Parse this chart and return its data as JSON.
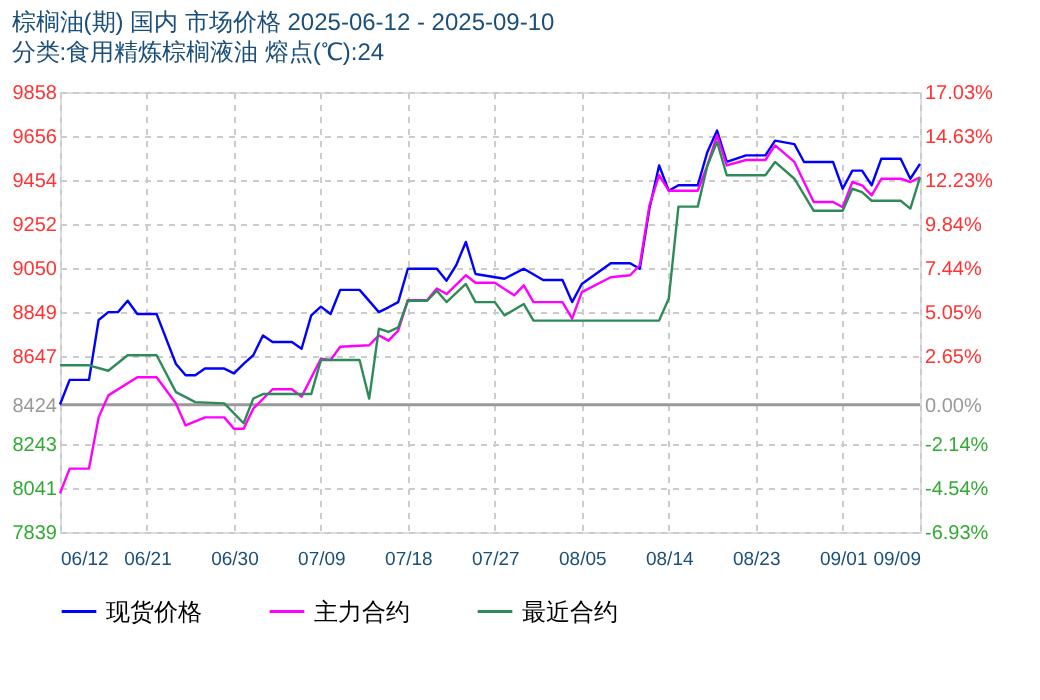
{
  "chart_data": {
    "type": "line",
    "title": "棕榈油(期) 国内 市场价格 2025-06-12 - 2025-09-10",
    "subtitle": "分类:食用精炼棕榈液油 熔点(℃):24",
    "xlim": [
      "2025-06-12",
      "2025-09-09"
    ],
    "xticks": [
      {
        "value": "2025-06-12",
        "label": "06/12"
      },
      {
        "value": "2025-06-21",
        "label": "06/21"
      },
      {
        "value": "2025-06-30",
        "label": "06/30"
      },
      {
        "value": "2025-07-09",
        "label": "07/09"
      },
      {
        "value": "2025-07-18",
        "label": "07/18"
      },
      {
        "value": "2025-07-27",
        "label": "07/27"
      },
      {
        "value": "2025-08-05",
        "label": "08/05"
      },
      {
        "value": "2025-08-14",
        "label": "08/14"
      },
      {
        "value": "2025-08-23",
        "label": "08/23"
      },
      {
        "value": "2025-09-01",
        "label": "09/01"
      },
      {
        "value": "2025-09-09",
        "label": "09/09"
      }
    ],
    "ylim": [
      7839,
      9858
    ],
    "yticks": [
      7839,
      8041,
      8243,
      8424,
      8647,
      8849,
      9050,
      9252,
      9454,
      9656,
      9858
    ],
    "y2lim": [
      -6.93,
      17.03
    ],
    "y2ticks": [
      {
        "value": -6.93,
        "label": "-6.93%"
      },
      {
        "value": -4.54,
        "label": "-4.54%"
      },
      {
        "value": -2.14,
        "label": "-2.14%"
      },
      {
        "value": 0,
        "label": "0.00%"
      },
      {
        "value": 2.65,
        "label": "2.65%"
      },
      {
        "value": 5.05,
        "label": "5.05%"
      },
      {
        "value": 7.44,
        "label": "7.44%"
      },
      {
        "value": 9.84,
        "label": "9.84%"
      },
      {
        "value": 12.23,
        "label": "12.23%"
      },
      {
        "value": 14.63,
        "label": "14.63%"
      },
      {
        "value": 17.03,
        "label": "17.03%"
      }
    ],
    "ref_lines": [
      {
        "axis": "y2",
        "value": 0,
        "color": "#999999",
        "line_style": "solid"
      }
    ],
    "grid": true,
    "legend": "bottom",
    "marker": "none",
    "line_style": "solid",
    "series": [
      {
        "name": "现货价格",
        "color": "#0000ff",
        "x": [
          "2025-06-12",
          "2025-06-13",
          "2025-06-15",
          "2025-06-16",
          "2025-06-17",
          "2025-06-18",
          "2025-06-19",
          "2025-06-20",
          "2025-06-22",
          "2025-06-24",
          "2025-06-25",
          "2025-06-26",
          "2025-06-27",
          "2025-06-29",
          "2025-06-30",
          "2025-07-01",
          "2025-07-02",
          "2025-07-03",
          "2025-07-04",
          "2025-07-06",
          "2025-07-07",
          "2025-07-08",
          "2025-07-09",
          "2025-07-10",
          "2025-07-11",
          "2025-07-13",
          "2025-07-15",
          "2025-07-16",
          "2025-07-17",
          "2025-07-18",
          "2025-07-21",
          "2025-07-22",
          "2025-07-23",
          "2025-07-24",
          "2025-07-25",
          "2025-07-28",
          "2025-07-30",
          "2025-08-01",
          "2025-08-03",
          "2025-08-04",
          "2025-08-05",
          "2025-08-08",
          "2025-08-10",
          "2025-08-11",
          "2025-08-12",
          "2025-08-13",
          "2025-08-14",
          "2025-08-15",
          "2025-08-17",
          "2025-08-18",
          "2025-08-19",
          "2025-08-20",
          "2025-08-22",
          "2025-08-24",
          "2025-08-25",
          "2025-08-27",
          "2025-08-28",
          "2025-08-31",
          "2025-09-01",
          "2025-09-02",
          "2025-09-03",
          "2025-09-04",
          "2025-09-05",
          "2025-09-07",
          "2025-09-08",
          "2025-09-09"
        ],
        "values": [
          8424,
          8537,
          8537,
          8812,
          8848,
          8848,
          8900,
          8839,
          8839,
          8610,
          8558,
          8558,
          8589,
          8589,
          8567,
          8610,
          8650,
          8741,
          8711,
          8711,
          8680,
          8833,
          8873,
          8839,
          8950,
          8950,
          8848,
          8870,
          8894,
          9047,
          9047,
          8992,
          9063,
          9170,
          9023,
          9001,
          9047,
          8995,
          8995,
          8894,
          8977,
          9072,
          9072,
          9047,
          9323,
          9521,
          9405,
          9430,
          9430,
          9583,
          9681,
          9537,
          9567,
          9567,
          9635,
          9619,
          9537,
          9537,
          9414,
          9497,
          9497,
          9430,
          9552,
          9552,
          9460,
          9528
        ]
      },
      {
        "name": "主力合约",
        "color": "#ff00ff",
        "x": [
          "2025-06-12",
          "2025-06-13",
          "2025-06-15",
          "2025-06-16",
          "2025-06-17",
          "2025-06-20",
          "2025-06-22",
          "2025-06-24",
          "2025-06-25",
          "2025-06-27",
          "2025-06-29",
          "2025-06-30",
          "2025-07-01",
          "2025-07-02",
          "2025-07-04",
          "2025-07-06",
          "2025-07-07",
          "2025-07-09",
          "2025-07-10",
          "2025-07-11",
          "2025-07-14",
          "2025-07-15",
          "2025-07-16",
          "2025-07-17",
          "2025-07-18",
          "2025-07-20",
          "2025-07-21",
          "2025-07-22",
          "2025-07-24",
          "2025-07-25",
          "2025-07-27",
          "2025-07-29",
          "2025-07-30",
          "2025-07-31",
          "2025-08-03",
          "2025-08-04",
          "2025-08-05",
          "2025-08-08",
          "2025-08-10",
          "2025-08-11",
          "2025-08-12",
          "2025-08-13",
          "2025-08-14",
          "2025-08-17",
          "2025-08-18",
          "2025-08-19",
          "2025-08-20",
          "2025-08-22",
          "2025-08-24",
          "2025-08-25",
          "2025-08-27",
          "2025-08-29",
          "2025-08-31",
          "2025-09-01",
          "2025-09-02",
          "2025-09-03",
          "2025-09-04",
          "2025-09-05",
          "2025-09-07",
          "2025-09-08",
          "2025-09-09"
        ],
        "values": [
          8016,
          8130,
          8130,
          8365,
          8466,
          8549,
          8549,
          8429,
          8328,
          8365,
          8365,
          8313,
          8313,
          8405,
          8494,
          8494,
          8460,
          8634,
          8628,
          8689,
          8696,
          8741,
          8717,
          8763,
          8903,
          8903,
          8956,
          8931,
          9017,
          8983,
          8983,
          8925,
          8971,
          8894,
          8894,
          8818,
          8940,
          9008,
          9017,
          9063,
          9338,
          9476,
          9405,
          9405,
          9521,
          9659,
          9521,
          9546,
          9546,
          9613,
          9537,
          9353,
          9353,
          9329,
          9445,
          9430,
          9384,
          9460,
          9460,
          9445,
          9466
        ]
      },
      {
        "name": "最近合约",
        "color": "#2e8b57",
        "x": [
          "2025-06-12",
          "2025-06-15",
          "2025-06-17",
          "2025-06-19",
          "2025-06-22",
          "2025-06-24",
          "2025-06-26",
          "2025-06-29",
          "2025-07-01",
          "2025-07-02",
          "2025-07-03",
          "2025-07-08",
          "2025-07-09",
          "2025-07-13",
          "2025-07-14",
          "2025-07-15",
          "2025-07-16",
          "2025-07-17",
          "2025-07-18",
          "2025-07-20",
          "2025-07-21",
          "2025-07-22",
          "2025-07-24",
          "2025-07-25",
          "2025-07-27",
          "2025-07-28",
          "2025-07-30",
          "2025-07-31",
          "2025-08-13",
          "2025-08-14",
          "2025-08-15",
          "2025-08-17",
          "2025-08-18",
          "2025-08-19",
          "2025-08-20",
          "2025-08-24",
          "2025-08-25",
          "2025-08-27",
          "2025-08-29",
          "2025-09-01",
          "2025-09-02",
          "2025-09-03",
          "2025-09-04",
          "2025-09-07",
          "2025-09-08",
          "2025-09-09"
        ],
        "values": [
          8604,
          8604,
          8579,
          8650,
          8650,
          8481,
          8435,
          8429,
          8338,
          8451,
          8472,
          8472,
          8628,
          8628,
          8451,
          8772,
          8757,
          8778,
          8900,
          8900,
          8946,
          8894,
          8977,
          8894,
          8894,
          8833,
          8885,
          8809,
          8809,
          8910,
          9332,
          9332,
          9521,
          9629,
          9476,
          9476,
          9537,
          9460,
          9313,
          9313,
          9414,
          9399,
          9359,
          9359,
          9323,
          9466
        ]
      }
    ]
  }
}
